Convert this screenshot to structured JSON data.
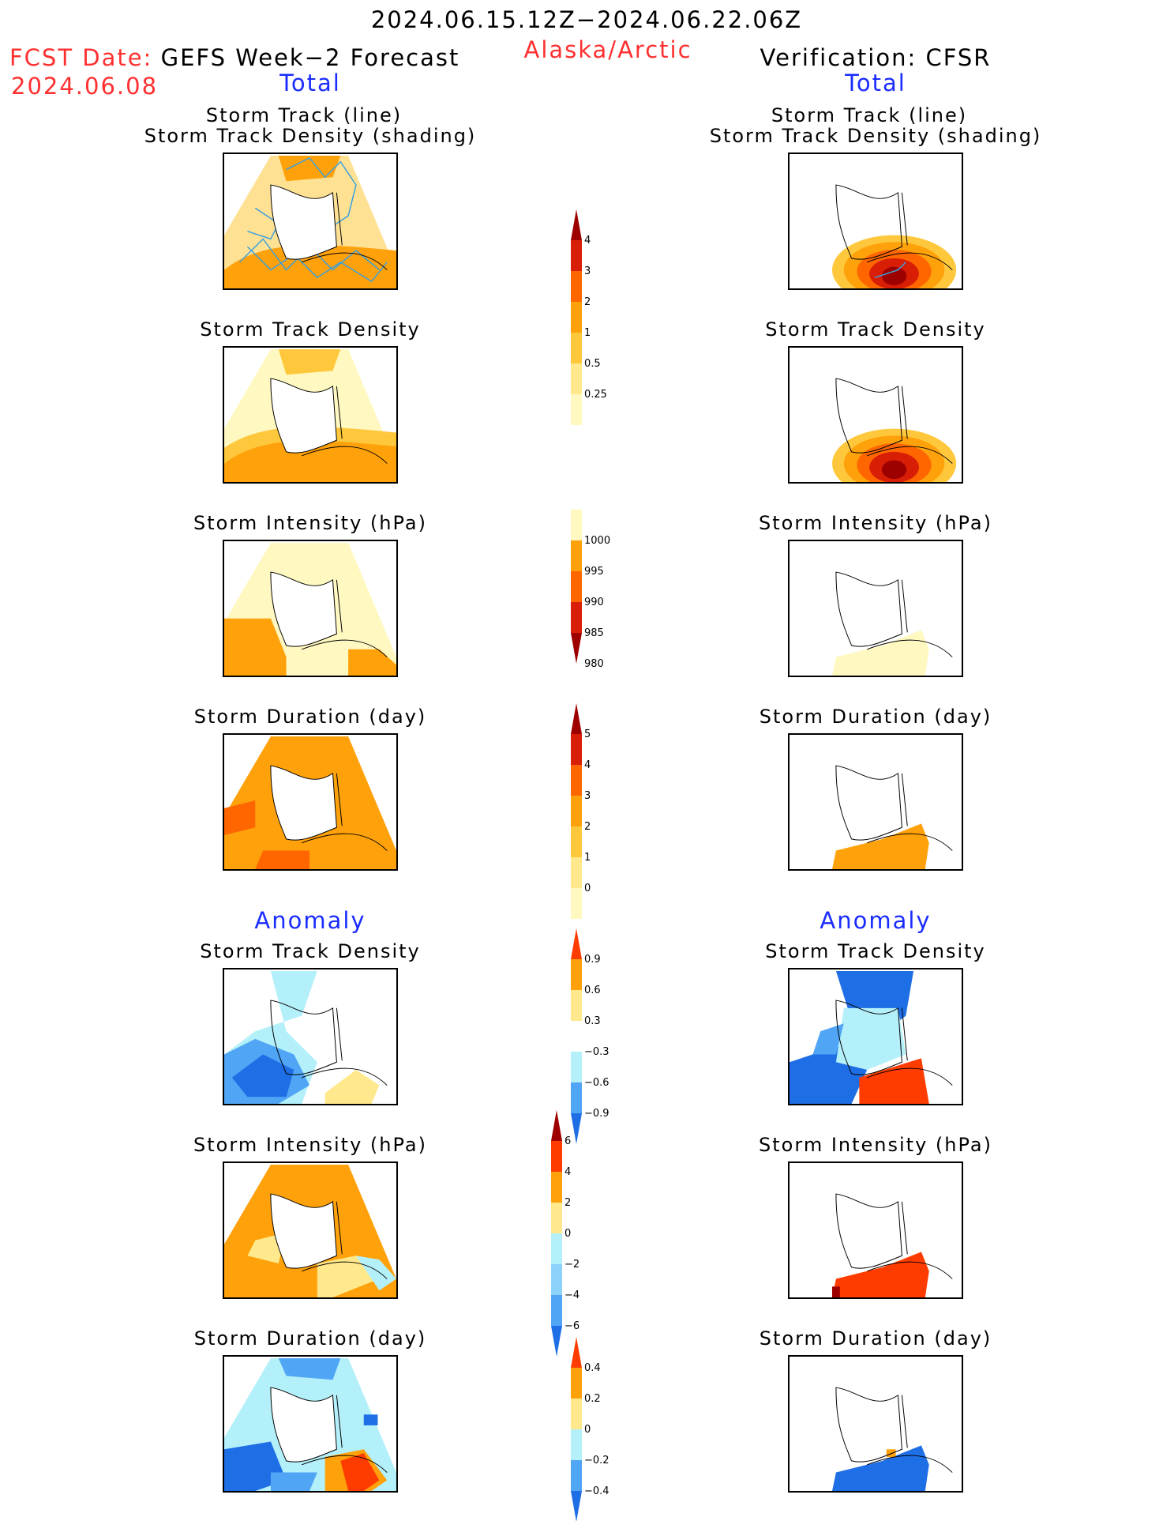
{
  "header": {
    "date_range": "2024.06.15.12Z−2024.06.22.06Z",
    "region": "Alaska/Arctic",
    "fcst_label": "FCST Date:",
    "fcst_date": "2024.06.08",
    "left_title": "GEFS Week−2 Forecast",
    "right_title": "Verification: CFSR",
    "total_label_left": "Total",
    "total_label_right": "Total",
    "anomaly_label_left": "Anomaly",
    "anomaly_label_right": "Anomaly"
  },
  "panel_titles": {
    "track_line": "Storm Track (line)",
    "track_shading": "Storm Track Density (shading)",
    "density": "Storm Track Density",
    "intensity": "Storm Intensity (hPa)",
    "duration": "Storm Duration (day)"
  },
  "colorbars": [
    {
      "id": "total-density",
      "labels": [
        "4",
        "3",
        "2",
        "1",
        "0.5",
        "0.25"
      ],
      "colors": [
        "#9e0000",
        "#d81e05",
        "#ff6600",
        "#ffa10a",
        "#ffc83c",
        "#ffe98c",
        "#fff8c0"
      ],
      "direction": "up"
    },
    {
      "id": "total-intensity",
      "labels": [
        "1000",
        "995",
        "990",
        "985",
        "980"
      ],
      "colors": [
        "#fff8c0",
        "#ffa10a",
        "#ff6600",
        "#d81e05",
        "#9e0000"
      ],
      "direction": "down"
    },
    {
      "id": "total-duration",
      "labels": [
        "5",
        "4",
        "3",
        "2",
        "1",
        "0"
      ],
      "colors": [
        "#9e0000",
        "#d81e05",
        "#ff6600",
        "#ffa10a",
        "#ffc83c",
        "#ffe98c",
        "#fff8c0"
      ],
      "direction": "up"
    },
    {
      "id": "anom-density",
      "labels": [
        "0.9",
        "0.6",
        "0.3",
        "−0.3",
        "−0.6",
        "−0.9"
      ],
      "colors": [
        "#ff3c00",
        "#ffa10a",
        "#ffe98c",
        "#ffffff",
        "#b4f0fa",
        "#50a5f5",
        "#1e6ee6"
      ],
      "direction": "both"
    },
    {
      "id": "anom-intensity",
      "labels": [
        "6",
        "4",
        "2",
        "0",
        "−2",
        "−4",
        "−6"
      ],
      "colors": [
        "#9e0000",
        "#ff3c00",
        "#ffa10a",
        "#ffe98c",
        "#b4f0fa",
        "#8cd2fa",
        "#50a5f5",
        "#1e6ee6"
      ],
      "direction": "both"
    },
    {
      "id": "anom-duration",
      "labels": [
        "0.4",
        "0.2",
        "0",
        "−0.2",
        "−0.4"
      ],
      "colors": [
        "#ff3c00",
        "#ffa10a",
        "#ffe98c",
        "#b4f0fa",
        "#50a5f5",
        "#1e6ee6"
      ],
      "direction": "both"
    }
  ],
  "colors": {
    "title_red": "#ff3030",
    "label_blue": "#1a2cff",
    "track_line": "#3aa0e0"
  }
}
